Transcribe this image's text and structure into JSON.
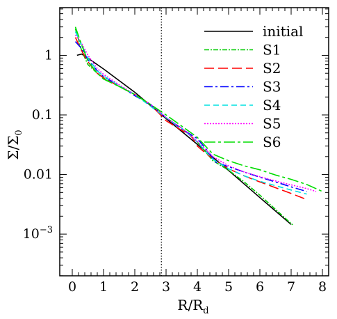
{
  "chart_data": {
    "type": "line",
    "title": "",
    "xlabel": {
      "main": "R/R",
      "sub": "d"
    },
    "ylabel": {
      "main": "Σ/Σ",
      "sub": "0"
    },
    "xlim": [
      -0.4,
      8.2
    ],
    "ylim_log10": [
      -3.7,
      0.8
    ],
    "y_scale": "log",
    "x_ticks": [
      0,
      1,
      2,
      3,
      4,
      5,
      6,
      7,
      8
    ],
    "x_tick_labels": [
      "0",
      "1",
      "2",
      "3",
      "4",
      "5",
      "6",
      "7",
      "8"
    ],
    "y_ticks": [
      1,
      0.1,
      0.01,
      0.001
    ],
    "y_tick_labels": [
      {
        "main": "1",
        "sup": ""
      },
      {
        "main": "0.1",
        "sup": ""
      },
      {
        "main": "0.01",
        "sup": ""
      },
      {
        "main": "10",
        "sup": "−3"
      }
    ],
    "vline": {
      "x": 2.85,
      "style": "dotted"
    },
    "legend_position": "top-right",
    "series": [
      {
        "name": "initial",
        "color": "#000000",
        "dash": "",
        "x": [
          0.15,
          0.3,
          0.5,
          1.0,
          2.0,
          3.0,
          4.0,
          5.0,
          6.0,
          7.0
        ],
        "y": [
          1.0,
          1.05,
          0.9,
          0.59,
          0.24,
          0.087,
          0.032,
          0.0117,
          0.0041,
          0.00145
        ]
      },
      {
        "name": "S1",
        "color": "#00cc00",
        "dash": "7,2,2,2",
        "x": [
          0.1,
          0.3,
          0.5,
          0.8,
          1.0,
          1.5,
          2.0,
          2.5,
          3.0,
          3.5,
          4.0,
          4.5,
          5.0,
          5.5,
          6.0,
          6.5,
          7.0,
          7.05
        ],
        "y": [
          2.8,
          1.2,
          0.7,
          0.5,
          0.42,
          0.3,
          0.22,
          0.15,
          0.09,
          0.06,
          0.035,
          0.017,
          0.0118,
          0.0075,
          0.0045,
          0.0026,
          0.0015,
          0.00143
        ]
      },
      {
        "name": "S2",
        "color": "#ff0000",
        "dash": "14,6",
        "x": [
          0.1,
          0.3,
          0.5,
          0.8,
          1.0,
          1.5,
          2.0,
          2.5,
          3.0,
          3.5,
          3.8,
          4.0,
          4.3,
          4.6,
          5.0,
          5.5,
          6.0,
          6.5,
          7.0,
          7.5
        ],
        "y": [
          2.0,
          1.2,
          0.78,
          0.5,
          0.42,
          0.3,
          0.22,
          0.15,
          0.08,
          0.055,
          0.045,
          0.03,
          0.022,
          0.017,
          0.0125,
          0.0095,
          0.0075,
          0.006,
          0.0048,
          0.0038
        ]
      },
      {
        "name": "S3",
        "color": "#0000ff",
        "dash": "12,4,3,4",
        "x": [
          0.1,
          0.3,
          0.5,
          0.8,
          1.0,
          1.5,
          2.0,
          2.5,
          3.0,
          3.5,
          4.0,
          4.3,
          4.6,
          5.0,
          5.5,
          6.0,
          6.5,
          7.0,
          7.5
        ],
        "y": [
          1.7,
          1.3,
          0.85,
          0.55,
          0.44,
          0.31,
          0.21,
          0.15,
          0.09,
          0.058,
          0.04,
          0.026,
          0.016,
          0.0135,
          0.011,
          0.009,
          0.0075,
          0.0062,
          0.0052
        ]
      },
      {
        "name": "S4",
        "color": "#00e0e0",
        "dash": "8,5",
        "x": [
          0.1,
          0.3,
          0.5,
          0.8,
          1.0,
          1.5,
          2.0,
          2.5,
          3.0,
          3.5,
          4.0,
          4.5,
          5.0,
          5.5,
          6.0,
          6.5,
          7.0,
          7.5
        ],
        "y": [
          2.5,
          1.5,
          0.9,
          0.55,
          0.45,
          0.31,
          0.22,
          0.14,
          0.09,
          0.06,
          0.035,
          0.018,
          0.0125,
          0.0095,
          0.0077,
          0.0065,
          0.0055,
          0.0047
        ]
      },
      {
        "name": "S5",
        "color": "#ff00ff",
        "dash": "2,2",
        "x": [
          0.1,
          0.3,
          0.5,
          0.8,
          1.0,
          1.5,
          2.0,
          2.5,
          3.0,
          3.5,
          4.0,
          4.5,
          5.0,
          5.5,
          6.0,
          6.5,
          7.0,
          7.5,
          7.8
        ],
        "y": [
          2.2,
          1.6,
          1.0,
          0.6,
          0.48,
          0.32,
          0.22,
          0.15,
          0.09,
          0.06,
          0.036,
          0.02,
          0.014,
          0.011,
          0.0092,
          0.0078,
          0.0067,
          0.0058,
          0.0052
        ]
      },
      {
        "name": "S6",
        "color": "#00dd00",
        "dash": "16,4,4,4",
        "x": [
          0.1,
          0.3,
          0.5,
          0.8,
          1.0,
          1.5,
          2.0,
          2.5,
          3.0,
          3.5,
          4.0,
          4.5,
          5.0,
          5.5,
          6.0,
          6.5,
          7.0,
          7.5,
          8.0
        ],
        "y": [
          3.0,
          1.5,
          0.8,
          0.5,
          0.4,
          0.3,
          0.22,
          0.15,
          0.1,
          0.065,
          0.042,
          0.022,
          0.017,
          0.014,
          0.012,
          0.0098,
          0.0083,
          0.0068,
          0.0052
        ]
      }
    ]
  }
}
